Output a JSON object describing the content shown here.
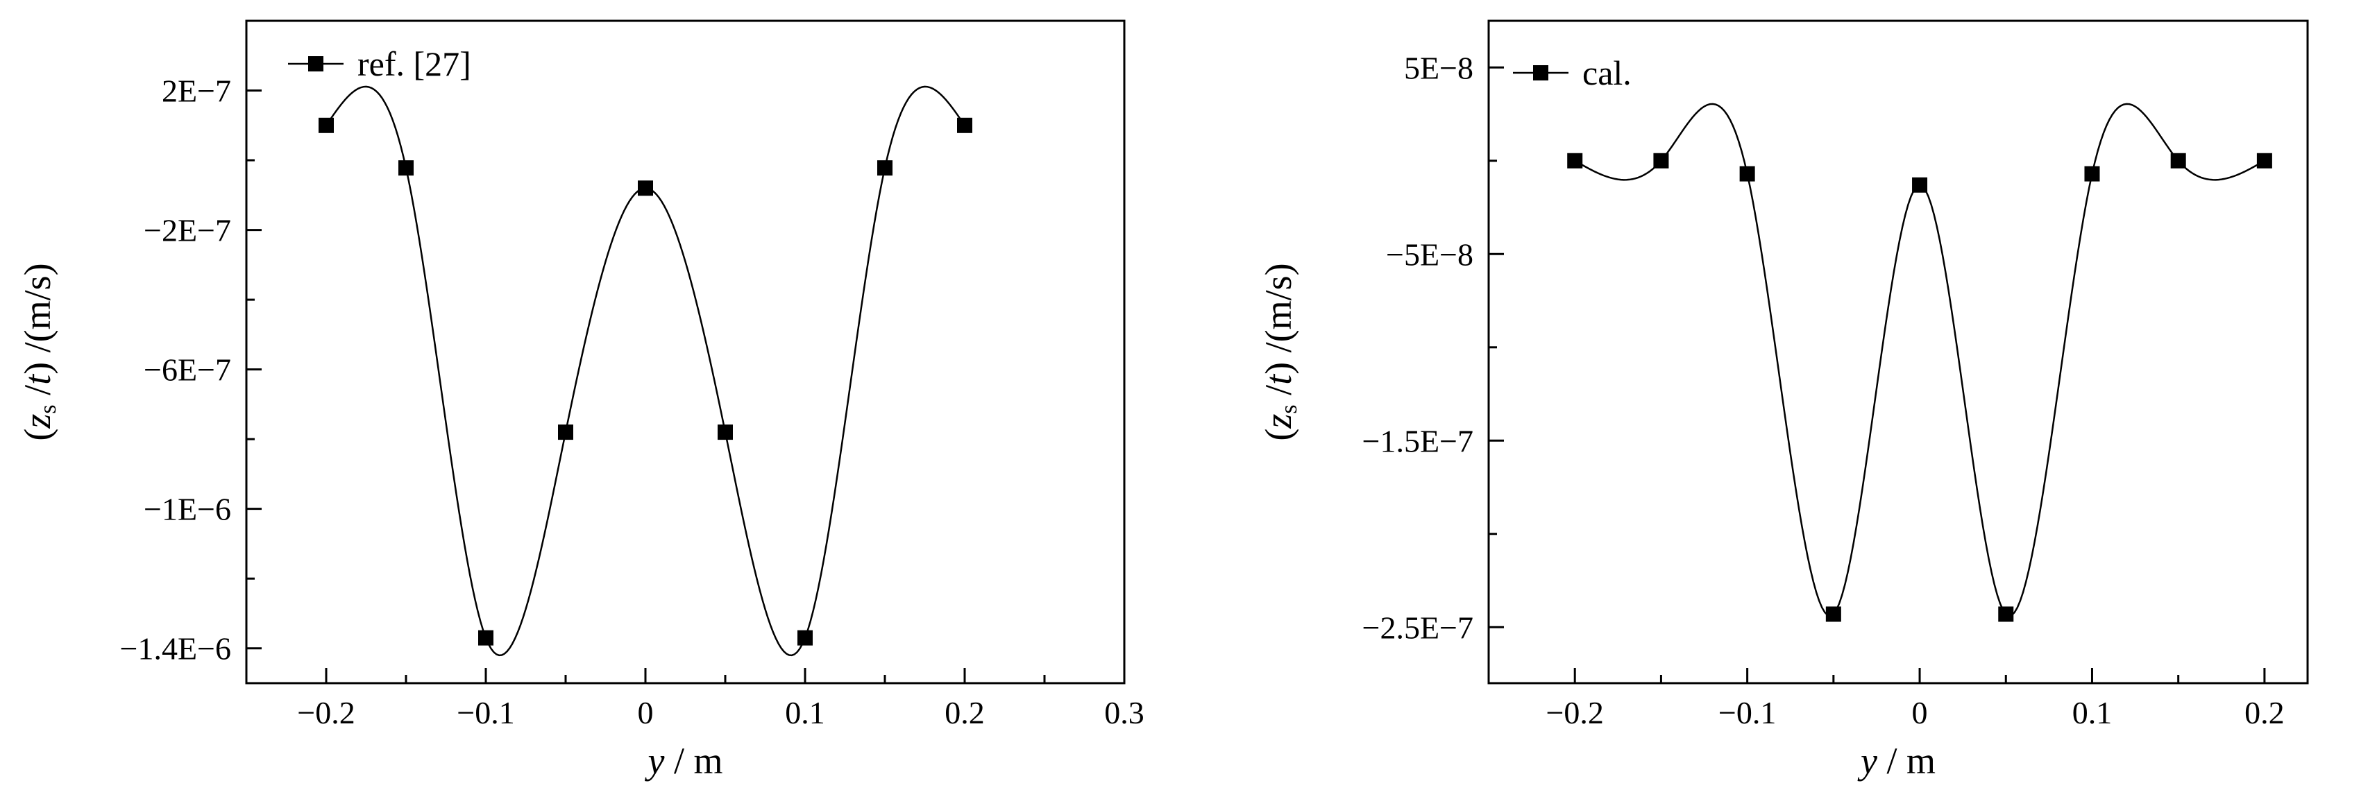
{
  "chart_data": [
    {
      "type": "scatter",
      "ylabel": "(z s / t) /(m/s)",
      "ylabel_parts": [
        "(",
        "z",
        "s",
        " /",
        "t",
        ") /(m/s)"
      ],
      "xlabel": "y / m",
      "xlabel_parts": [
        "y",
        " / m"
      ],
      "xlim": [
        -0.25,
        0.3
      ],
      "ylim": [
        -1.5e-06,
        4e-07
      ],
      "xticks": [
        -0.2,
        -0.1,
        0,
        0.1,
        0.2,
        0.3
      ],
      "xtick_labels": [
        "−0.2",
        "−0.1",
        "0",
        "0.1",
        "0.2",
        "0.3"
      ],
      "yticks": [
        2e-07,
        -2e-07,
        -6e-07,
        -1e-06,
        -1.4e-06
      ],
      "ytick_labels": [
        "2E−7",
        "−2E−7",
        "−6E−7",
        "−1E−6",
        "−1.4E−6"
      ],
      "legend": {
        "position": "top-left",
        "entries": [
          "ref. [27]"
        ]
      },
      "grid": false,
      "series": [
        {
          "name": "ref. [27]",
          "marker": "square",
          "color": "#000000",
          "x": [
            -0.2,
            -0.15,
            -0.1,
            -0.05,
            0,
            0.05,
            0.1,
            0.15,
            0.2
          ],
          "y": [
            1e-07,
            -2.2e-08,
            -1.37e-06,
            -7.8e-07,
            -8e-08,
            -7.8e-07,
            -1.37e-06,
            -2.2e-08,
            1e-07
          ]
        }
      ]
    },
    {
      "type": "scatter",
      "ylabel": "(z s / t) /(m/s)",
      "ylabel_parts": [
        "(",
        "z",
        "s",
        " /",
        "t",
        ") /(m/s)"
      ],
      "xlabel": "y / m",
      "xlabel_parts": [
        "y",
        " / m"
      ],
      "xlim": [
        -0.25,
        0.225
      ],
      "ylim": [
        -2.8e-07,
        7.5e-08
      ],
      "xticks": [
        -0.2,
        -0.1,
        0,
        0.1,
        0.2
      ],
      "xtick_labels": [
        "−0.2",
        "−0.1",
        "0",
        "0.1",
        "0.2"
      ],
      "yticks": [
        5e-08,
        -5e-08,
        -1.5e-07,
        -2.5e-07
      ],
      "ytick_labels": [
        "5E−8",
        "−5E−8",
        "−1.5E−7",
        "−2.5E−7"
      ],
      "legend": {
        "position": "top-left",
        "entries": [
          "cal."
        ]
      },
      "grid": false,
      "series": [
        {
          "name": "cal.",
          "marker": "square",
          "color": "#000000",
          "x": [
            -0.2,
            -0.15,
            -0.1,
            -0.05,
            0,
            0.05,
            0.1,
            0.15,
            0.2
          ],
          "y": [
            0,
            0,
            -7e-09,
            -2.43e-07,
            -1.3e-08,
            -2.43e-07,
            -7e-09,
            0,
            0
          ]
        }
      ]
    }
  ]
}
